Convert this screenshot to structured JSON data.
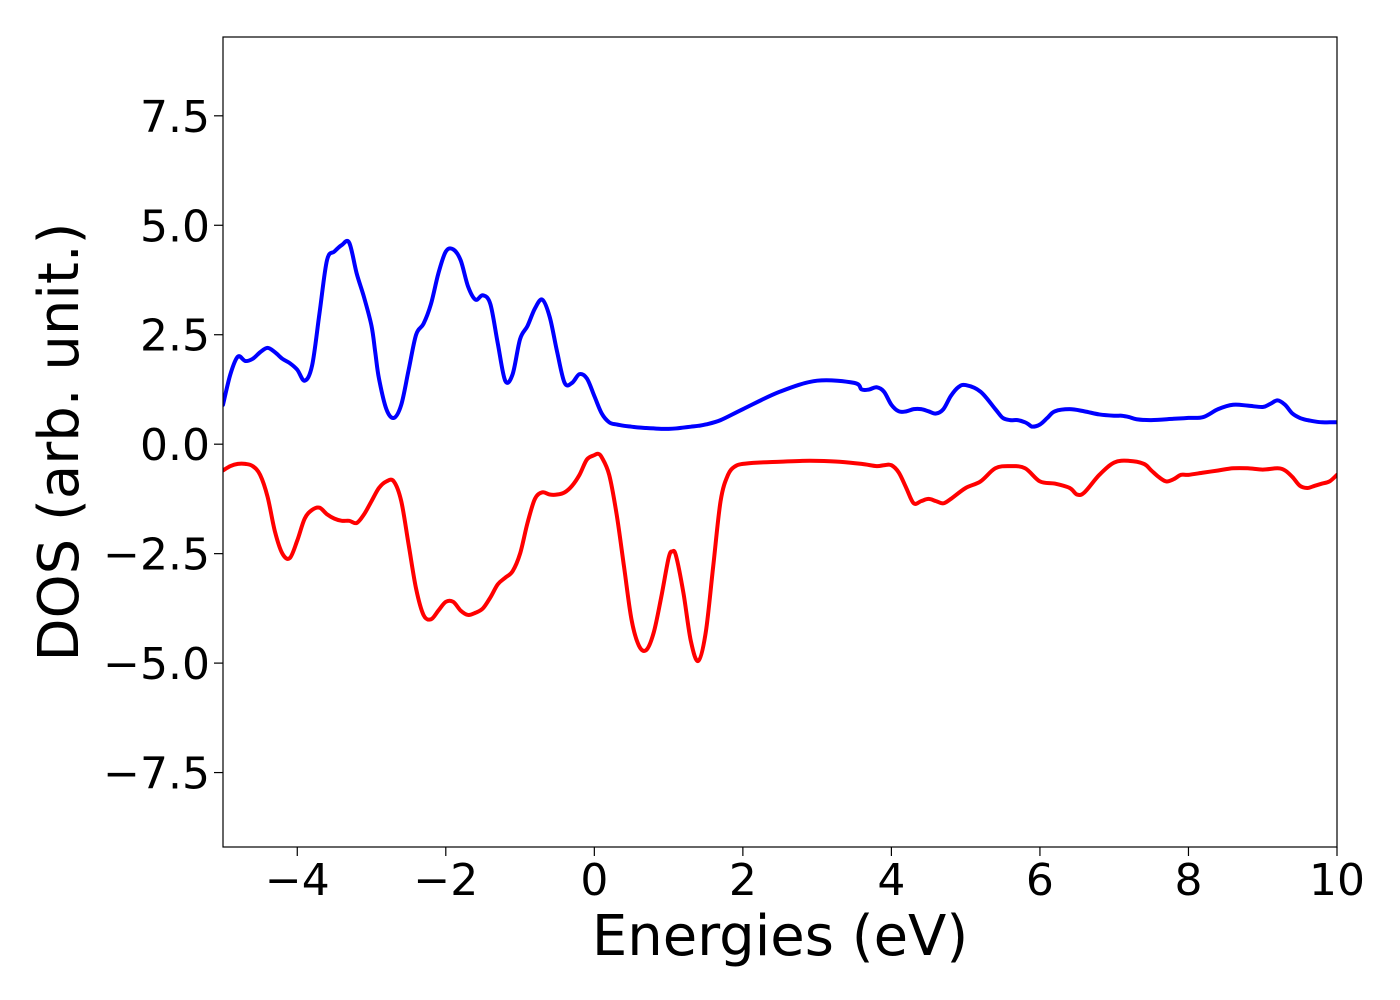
{
  "chart_data": {
    "type": "line",
    "title": "",
    "xlabel": "Energies (eV)",
    "ylabel": "DOS (arb. unit.)",
    "xlim": [
      -5,
      10
    ],
    "ylim": [
      -9.2,
      9.3
    ],
    "grid": false,
    "x_ticks": [
      -4,
      -2,
      0,
      2,
      4,
      6,
      8,
      10
    ],
    "x_tick_labels": [
      "−4",
      "−2",
      "0",
      "2",
      "4",
      "6",
      "8",
      "10"
    ],
    "y_ticks": [
      7.5,
      5.0,
      2.5,
      0.0,
      -2.5,
      -5.0,
      -7.5
    ],
    "y_tick_labels": [
      "7.5",
      "5.0",
      "2.5",
      "0.0",
      "−2.5",
      "−5.0",
      "−7.5"
    ],
    "series": [
      {
        "color": "#0000ff",
        "x": [
          -5.0,
          -4.9,
          -4.8,
          -4.7,
          -4.6,
          -4.5,
          -4.4,
          -4.3,
          -4.2,
          -4.1,
          -4.0,
          -3.9,
          -3.8,
          -3.7,
          -3.6,
          -3.5,
          -3.4,
          -3.3,
          -3.2,
          -3.1,
          -3.0,
          -2.95,
          -2.9,
          -2.8,
          -2.7,
          -2.6,
          -2.5,
          -2.4,
          -2.3,
          -2.2,
          -2.1,
          -2.0,
          -1.9,
          -1.8,
          -1.7,
          -1.6,
          -1.5,
          -1.4,
          -1.3,
          -1.2,
          -1.1,
          -1.0,
          -0.9,
          -0.8,
          -0.7,
          -0.6,
          -0.5,
          -0.4,
          -0.3,
          -0.2,
          -0.1,
          0.0,
          0.1,
          0.2,
          0.3,
          0.4,
          0.5,
          0.6,
          0.7,
          0.8,
          0.9,
          1.0,
          1.1,
          1.2,
          1.3,
          1.4,
          1.5,
          1.7,
          2.0,
          2.5,
          3.0,
          3.5,
          3.6,
          3.7,
          3.8,
          3.9,
          4.0,
          4.1,
          4.2,
          4.3,
          4.4,
          4.5,
          4.6,
          4.7,
          4.8,
          4.9,
          5.0,
          5.2,
          5.4,
          5.5,
          5.6,
          5.7,
          5.8,
          5.85,
          5.9,
          6.0,
          6.1,
          6.2,
          6.4,
          6.6,
          6.8,
          7.0,
          7.1,
          7.2,
          7.3,
          7.5,
          7.8,
          8.0,
          8.2,
          8.4,
          8.6,
          8.8,
          9.0,
          9.1,
          9.2,
          9.3,
          9.4,
          9.5,
          9.6,
          9.7,
          9.8,
          9.9,
          10.0
        ],
        "y": [
          0.9,
          1.6,
          2.0,
          1.9,
          1.95,
          2.1,
          2.2,
          2.1,
          1.95,
          1.85,
          1.7,
          1.45,
          1.8,
          3.0,
          4.2,
          4.4,
          4.55,
          4.6,
          3.9,
          3.35,
          2.7,
          2.1,
          1.5,
          0.8,
          0.6,
          0.9,
          1.7,
          2.5,
          2.75,
          3.2,
          3.9,
          4.4,
          4.45,
          4.2,
          3.6,
          3.3,
          3.4,
          3.2,
          2.3,
          1.45,
          1.6,
          2.4,
          2.7,
          3.1,
          3.3,
          2.9,
          2.1,
          1.4,
          1.4,
          1.6,
          1.5,
          1.1,
          0.7,
          0.5,
          0.45,
          0.42,
          0.4,
          0.38,
          0.37,
          0.36,
          0.35,
          0.35,
          0.36,
          0.38,
          0.4,
          0.42,
          0.45,
          0.55,
          0.8,
          1.2,
          1.45,
          1.4,
          1.25,
          1.25,
          1.3,
          1.2,
          0.9,
          0.75,
          0.75,
          0.8,
          0.8,
          0.75,
          0.7,
          0.8,
          1.1,
          1.3,
          1.35,
          1.2,
          0.8,
          0.6,
          0.55,
          0.55,
          0.5,
          0.45,
          0.4,
          0.45,
          0.6,
          0.75,
          0.8,
          0.75,
          0.68,
          0.65,
          0.65,
          0.62,
          0.57,
          0.55,
          0.58,
          0.6,
          0.62,
          0.8,
          0.9,
          0.88,
          0.85,
          0.92,
          1.0,
          0.9,
          0.7,
          0.6,
          0.55,
          0.52,
          0.5,
          0.5,
          0.5
        ]
      },
      {
        "color": "#ff0000",
        "x": [
          -5.0,
          -4.9,
          -4.8,
          -4.7,
          -4.6,
          -4.5,
          -4.4,
          -4.3,
          -4.2,
          -4.1,
          -4.0,
          -3.9,
          -3.8,
          -3.7,
          -3.6,
          -3.5,
          -3.4,
          -3.3,
          -3.2,
          -3.1,
          -3.0,
          -2.9,
          -2.8,
          -2.7,
          -2.6,
          -2.5,
          -2.4,
          -2.3,
          -2.2,
          -2.1,
          -2.0,
          -1.9,
          -1.8,
          -1.7,
          -1.6,
          -1.5,
          -1.4,
          -1.3,
          -1.2,
          -1.1,
          -1.0,
          -0.9,
          -0.8,
          -0.7,
          -0.6,
          -0.5,
          -0.4,
          -0.3,
          -0.2,
          -0.1,
          0.0,
          0.05,
          0.1,
          0.2,
          0.3,
          0.4,
          0.5,
          0.6,
          0.7,
          0.8,
          0.9,
          1.0,
          1.05,
          1.1,
          1.2,
          1.3,
          1.4,
          1.5,
          1.6,
          1.7,
          1.8,
          1.9,
          2.0,
          2.2,
          2.5,
          2.8,
          3.0,
          3.3,
          3.6,
          3.8,
          3.9,
          4.0,
          4.1,
          4.2,
          4.3,
          4.4,
          4.5,
          4.6,
          4.7,
          4.8,
          5.0,
          5.2,
          5.4,
          5.6,
          5.8,
          6.0,
          6.2,
          6.4,
          6.5,
          6.6,
          6.8,
          7.0,
          7.2,
          7.4,
          7.5,
          7.6,
          7.7,
          7.8,
          7.9,
          8.0,
          8.2,
          8.4,
          8.6,
          8.8,
          9.0,
          9.2,
          9.3,
          9.4,
          9.5,
          9.6,
          9.7,
          9.8,
          9.9,
          10.0
        ],
        "y": [
          -0.6,
          -0.5,
          -0.45,
          -0.45,
          -0.5,
          -0.7,
          -1.2,
          -2.0,
          -2.5,
          -2.6,
          -2.2,
          -1.7,
          -1.5,
          -1.45,
          -1.6,
          -1.7,
          -1.75,
          -1.75,
          -1.8,
          -1.6,
          -1.3,
          -1.0,
          -0.85,
          -0.85,
          -1.3,
          -2.3,
          -3.3,
          -3.9,
          -4.0,
          -3.8,
          -3.6,
          -3.6,
          -3.8,
          -3.9,
          -3.85,
          -3.75,
          -3.5,
          -3.2,
          -3.05,
          -2.9,
          -2.5,
          -1.8,
          -1.25,
          -1.1,
          -1.15,
          -1.15,
          -1.1,
          -0.95,
          -0.7,
          -0.35,
          -0.25,
          -0.22,
          -0.3,
          -0.7,
          -1.6,
          -2.8,
          -4.0,
          -4.6,
          -4.7,
          -4.3,
          -3.5,
          -2.6,
          -2.45,
          -2.55,
          -3.4,
          -4.5,
          -4.95,
          -4.3,
          -2.8,
          -1.3,
          -0.7,
          -0.5,
          -0.45,
          -0.42,
          -0.4,
          -0.38,
          -0.38,
          -0.4,
          -0.45,
          -0.5,
          -0.48,
          -0.48,
          -0.65,
          -1.0,
          -1.35,
          -1.3,
          -1.25,
          -1.3,
          -1.35,
          -1.25,
          -1.0,
          -0.85,
          -0.55,
          -0.5,
          -0.55,
          -0.85,
          -0.9,
          -1.0,
          -1.15,
          -1.1,
          -0.7,
          -0.42,
          -0.38,
          -0.45,
          -0.6,
          -0.75,
          -0.85,
          -0.8,
          -0.7,
          -0.7,
          -0.65,
          -0.6,
          -0.55,
          -0.55,
          -0.58,
          -0.55,
          -0.6,
          -0.75,
          -0.95,
          -1.0,
          -0.95,
          -0.9,
          -0.85,
          -0.7
        ]
      }
    ]
  }
}
